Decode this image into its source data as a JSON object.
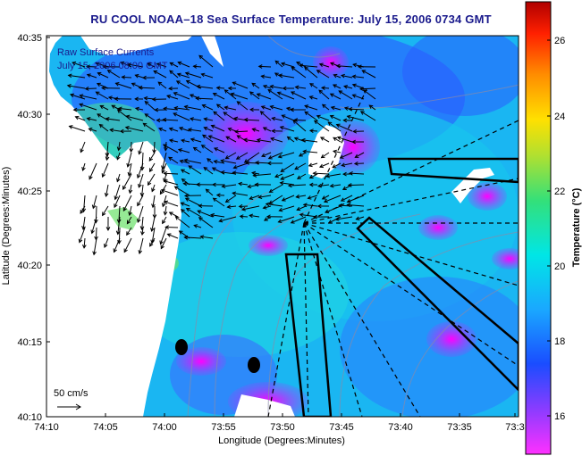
{
  "title": "RU COOL  NOAA–18  Sea Surface Temperature:  July 15, 2006 0734 GMT",
  "overlay": {
    "line1": "Raw Surface Currents",
    "line2": "July 15, 2006 08:00 GMT"
  },
  "scale": {
    "label": "50 cm/s"
  },
  "axes": {
    "xlabel": "Longitude (Degrees:Minutes)",
    "ylabel": "Latitude (Degrees:Minutes)",
    "xticks": [
      "74:10",
      "74:05",
      "74:00",
      "73:55",
      "73:50",
      "73:45",
      "73:40",
      "73:35",
      "73:3"
    ],
    "yticks": [
      "40:35",
      "40:30",
      "40:25",
      "40:20",
      "40:15",
      "40:10"
    ]
  },
  "colorbar": {
    "label": "Temperature (°C)",
    "ticks": [
      "26",
      "24",
      "22",
      "20",
      "18",
      "16"
    ]
  },
  "colors": {
    "title": "#1a1a8c",
    "land": "#ffffff",
    "cold": "#ff00ff",
    "warm": "#00e0e0"
  }
}
